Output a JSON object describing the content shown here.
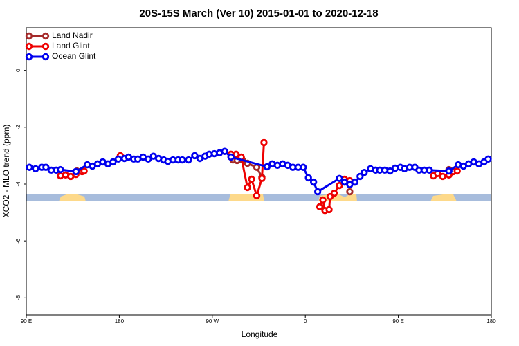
{
  "chart_data": {
    "type": "line",
    "title": "20S-15S March (Ver 10)   2015-01-01 to 2020-12-18",
    "xlabel": "Longitude",
    "ylabel": "XCO2 - MLO trend (ppm)",
    "xlim": [
      90,
      540
    ],
    "ylim": [
      1.5,
      -8.6
    ],
    "xticks": [
      {
        "value": 90,
        "label": "90 E"
      },
      180,
      {
        "value": 270,
        "label": "90 W"
      },
      {
        "value": 360,
        "label": "0"
      },
      {
        "value": 450,
        "label": "90 E"
      },
      {
        "value": 540,
        "label": "180"
      }
    ],
    "yticks": [
      0,
      -2,
      -4,
      -6,
      -8
    ],
    "legend": "top-left",
    "series": [
      {
        "name": "Land Nadir",
        "color": "#a52a2a",
        "x": [
          139,
          null,
          290,
          294,
          299,
          304,
          313,
          318,
          null,
          403,
          null,
          499
        ],
        "values": [
          -3.54,
          null,
          -3.15,
          -3.17,
          -3.15,
          -3.27,
          -3.41,
          -3.76,
          null,
          -4.27,
          null,
          -3.49
        ]
      },
      {
        "name": "Land Glint",
        "color": "#ee0000",
        "x": [
          123,
          128,
          133,
          138,
          144,
          146,
          null,
          181,
          null,
          288,
          293,
          298,
          304,
          308,
          313,
          318,
          320,
          null,
          374,
          377,
          379,
          383,
          384,
          388,
          393,
          398,
          403,
          null,
          484,
          488,
          493,
          499,
          503,
          507
        ],
        "values": [
          -3.71,
          -3.68,
          -3.73,
          -3.66,
          -3.56,
          -3.54,
          null,
          -3.0,
          null,
          -2.95,
          -2.95,
          -3.05,
          -4.12,
          -3.83,
          -4.41,
          -3.8,
          -2.54,
          null,
          -4.8,
          -4.56,
          -4.93,
          -4.9,
          -4.44,
          -4.32,
          -4.05,
          -3.83,
          -3.88,
          null,
          -3.71,
          -3.63,
          -3.73,
          -3.68,
          -3.56,
          -3.54
        ]
      },
      {
        "name": "Ocean Glint",
        "color": "#0000ee",
        "x": [
          93,
          99,
          105,
          109,
          114,
          119,
          123,
          138,
          149,
          154,
          159,
          164,
          169,
          174,
          179,
          185,
          189,
          194,
          198,
          203,
          208,
          213,
          218,
          223,
          227,
          232,
          237,
          241,
          247,
          253,
          258,
          263,
          267,
          272,
          277,
          282,
          288,
          323,
          328,
          333,
          338,
          343,
          348,
          353,
          358,
          363,
          368,
          372,
          393,
          398,
          403,
          408,
          413,
          417,
          423,
          428,
          432,
          437,
          442,
          447,
          452,
          456,
          461,
          466,
          470,
          475,
          480,
          499,
          508,
          513,
          518,
          523,
          528,
          533,
          537
        ],
        "values": [
          -3.41,
          -3.46,
          -3.41,
          -3.41,
          -3.51,
          -3.51,
          -3.49,
          -3.56,
          -3.32,
          -3.37,
          -3.29,
          -3.22,
          -3.29,
          -3.22,
          -3.12,
          -3.1,
          -3.05,
          -3.12,
          -3.12,
          -3.05,
          -3.12,
          -3.02,
          -3.1,
          -3.15,
          -3.2,
          -3.15,
          -3.15,
          -3.15,
          -3.15,
          -3.0,
          -3.1,
          -3.02,
          -2.95,
          -2.93,
          -2.9,
          -2.85,
          -3.05,
          -3.39,
          -3.29,
          -3.34,
          -3.29,
          -3.34,
          -3.41,
          -3.41,
          -3.41,
          -3.78,
          -3.93,
          -4.27,
          -3.8,
          -3.93,
          -4.02,
          -3.93,
          -3.73,
          -3.59,
          -3.46,
          -3.51,
          -3.51,
          -3.51,
          -3.54,
          -3.44,
          -3.41,
          -3.46,
          -3.41,
          -3.41,
          -3.51,
          -3.51,
          -3.51,
          -3.54,
          -3.32,
          -3.37,
          -3.29,
          -3.22,
          -3.29,
          -3.22,
          -3.12
        ]
      }
    ]
  }
}
